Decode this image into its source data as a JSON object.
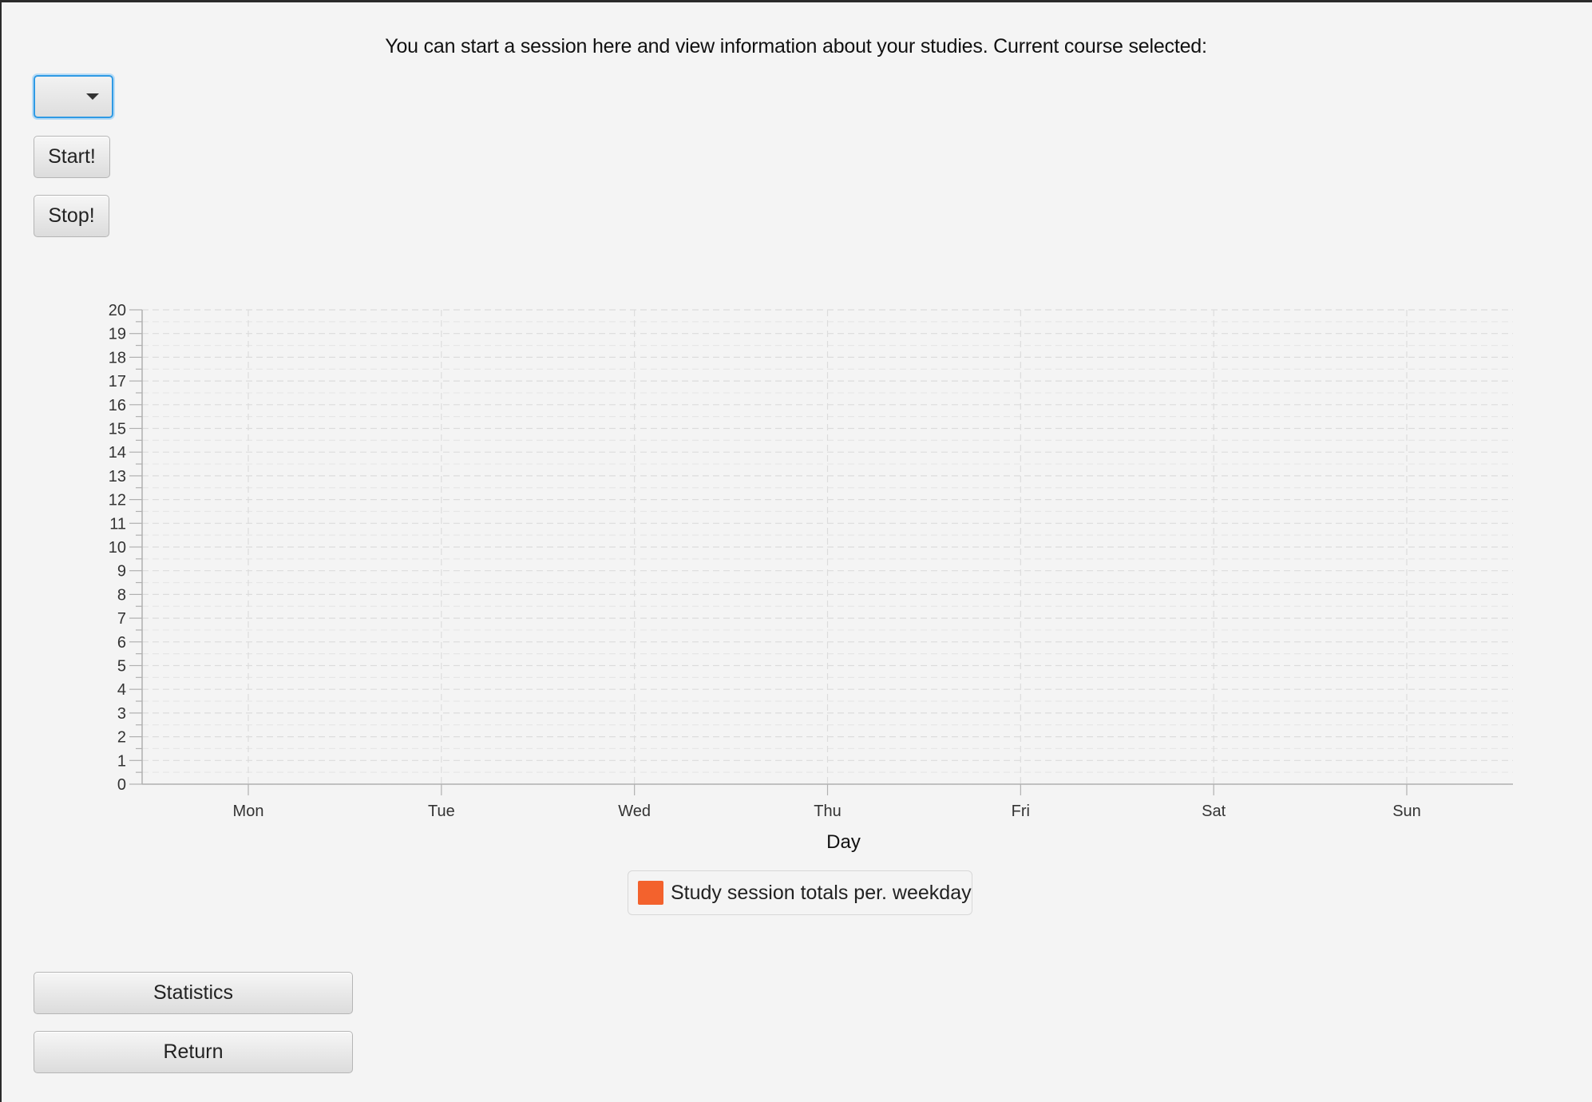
{
  "header": {
    "instructions": "You can start a session here and view information about your studies. Current course selected:"
  },
  "course_select": {
    "selected": ""
  },
  "buttons": {
    "start_label": "Start!",
    "stop_label": "Stop!",
    "statistics_label": "Statistics",
    "return_label": "Return"
  },
  "chart_data": {
    "type": "bar",
    "categories": [
      "Mon",
      "Tue",
      "Wed",
      "Thu",
      "Fri",
      "Sat",
      "Sun"
    ],
    "series": [
      {
        "name": "Study session totals per. weekday",
        "color": "#f3622d",
        "values": [
          0,
          0,
          0,
          0,
          0,
          0,
          0
        ]
      }
    ],
    "title": "",
    "xlabel": "Day",
    "ylabel": "",
    "ylim": [
      0,
      20
    ],
    "yticks": [
      "0",
      "1",
      "2",
      "3",
      "4",
      "5",
      "6",
      "7",
      "8",
      "9",
      "10",
      "11",
      "12",
      "13",
      "14",
      "15",
      "16",
      "17",
      "18",
      "19",
      "20"
    ],
    "grid": true,
    "legend_position": "bottom"
  }
}
